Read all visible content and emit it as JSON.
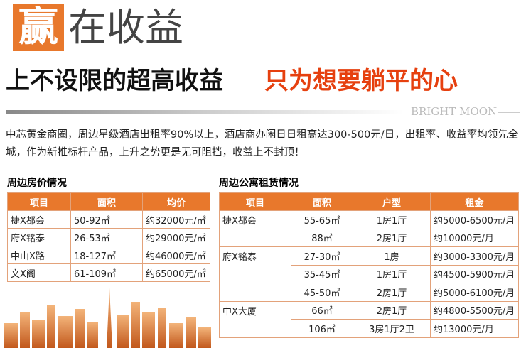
{
  "header": {
    "mark": "赢",
    "title": "在收益",
    "slogan_left": "上不设限的超高收益",
    "slogan_right": "只为想要躺平的心",
    "brand": "BRIGHT MOON"
  },
  "intro": "中芯黄金商圈，周边星级酒店出租率90%以上，酒店商办闲日日租高达300-500元/日，出租率、收益率均领先全城，作为新推标杆产品，上升之势更是无可阻挡，收益上不封顶！",
  "price_table": {
    "title": "周边房价情况",
    "columns": [
      "项目",
      "面积",
      "均价"
    ],
    "rows": [
      [
        "捷X都会",
        "50-92㎡",
        "约32000元/㎡"
      ],
      [
        "府X铭泰",
        "26-53㎡",
        "约29000元/㎡"
      ],
      [
        "中山X路",
        "18-127㎡",
        "约46000元/㎡"
      ],
      [
        "文X阁",
        "61-109㎡",
        "约65000元/㎡"
      ]
    ]
  },
  "rent_table": {
    "title": "周边公寓租赁情况",
    "columns": [
      "项目",
      "面积",
      "户型",
      "租金"
    ],
    "groups": [
      {
        "project": "捷X都会",
        "rows": [
          [
            "55-65㎡",
            "1房1厅",
            "约5000-6500元/月"
          ],
          [
            "88㎡",
            "2房1厅",
            "约10000元/月"
          ]
        ]
      },
      {
        "project": "府X铭泰",
        "rows": [
          [
            "27-30㎡",
            "1房",
            "约3000-3300元/月"
          ],
          [
            "35-45㎡",
            "1房1厅",
            "约4500-5900元/月"
          ],
          [
            "45-50㎡",
            "2房1厅",
            "约5000-6100元/月"
          ]
        ]
      },
      {
        "project": "中X大厦",
        "rows": [
          [
            "66㎡",
            "2房1厅",
            "约4800-5500元/月"
          ],
          [
            "106㎡",
            "3房1厅2卫",
            "约13000元/月"
          ]
        ]
      }
    ]
  }
}
